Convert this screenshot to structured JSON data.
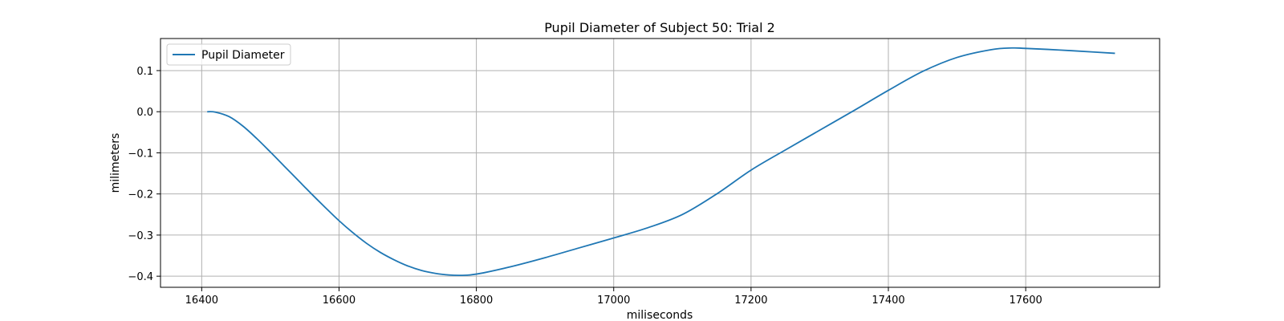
{
  "chart_data": {
    "type": "line",
    "title": "Pupil Diameter of Subject 50: Trial 2",
    "xlabel": "miliseconds",
    "ylabel": "milimeters",
    "xlim": [
      16340,
      17795
    ],
    "ylim": [
      -0.427,
      0.178
    ],
    "xticks": [
      16400,
      16600,
      16800,
      17000,
      17200,
      17400,
      17600
    ],
    "xtick_labels": [
      "16400",
      "16600",
      "16800",
      "17000",
      "17200",
      "17400",
      "17600"
    ],
    "yticks": [
      0.1,
      0.0,
      -0.1,
      -0.2,
      -0.3,
      -0.4
    ],
    "ytick_labels": [
      "0.1",
      "0.0",
      "−0.1",
      "−0.2",
      "−0.3",
      "−0.4"
    ],
    "grid": true,
    "legend_position": "top-left",
    "series": [
      {
        "name": "Pupil Diameter",
        "color": "#1f77b4",
        "x": [
          16408,
          16420,
          16440,
          16460,
          16480,
          16500,
          16520,
          16540,
          16560,
          16580,
          16600,
          16620,
          16640,
          16660,
          16680,
          16700,
          16720,
          16740,
          16760,
          16775,
          16790,
          16810,
          16850,
          16900,
          16950,
          17000,
          17050,
          17100,
          17150,
          17200,
          17250,
          17300,
          17350,
          17400,
          17450,
          17500,
          17550,
          17580,
          17600,
          17650,
          17700,
          17730
        ],
        "y": [
          0.0,
          -0.001,
          -0.012,
          -0.035,
          -0.065,
          -0.098,
          -0.132,
          -0.166,
          -0.2,
          -0.233,
          -0.265,
          -0.294,
          -0.32,
          -0.342,
          -0.36,
          -0.375,
          -0.386,
          -0.393,
          -0.397,
          -0.398,
          -0.397,
          -0.392,
          -0.377,
          -0.355,
          -0.331,
          -0.307,
          -0.282,
          -0.25,
          -0.2,
          -0.142,
          -0.093,
          -0.045,
          0.003,
          0.052,
          0.098,
          0.132,
          0.151,
          0.155,
          0.154,
          0.15,
          0.145,
          0.142
        ]
      }
    ]
  }
}
